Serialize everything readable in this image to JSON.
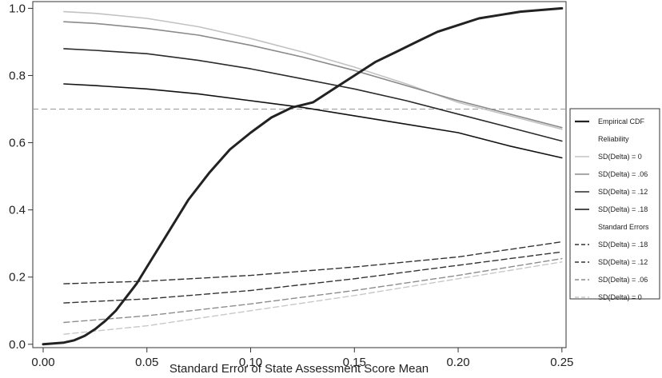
{
  "chart_data": {
    "type": "line",
    "title": "",
    "xlabel": "Standard Error of State Assessment Score Mean",
    "ylabel": "",
    "xlim": [
      -0.005,
      0.252
    ],
    "ylim": [
      -0.01,
      1.02
    ],
    "xticks": [
      0.0,
      0.05,
      0.1,
      0.15,
      0.2,
      0.25
    ],
    "xtick_labels": [
      "0.00",
      "0.05",
      "0.10",
      "0.15",
      "0.20",
      "0.25"
    ],
    "yticks": [
      0.0,
      0.2,
      0.4,
      0.6,
      0.8,
      1.0
    ],
    "ytick_labels": [
      "0.0",
      "0.2",
      "0.4",
      "0.6",
      "0.8",
      "1.0"
    ],
    "grid": false,
    "legend_position": "right",
    "reference_line": {
      "y": 0.7,
      "style": "dashed",
      "color": "#999999"
    },
    "legend": [
      {
        "kind": "series",
        "series_index": 0,
        "label": "Empirical CDF"
      },
      {
        "kind": "header",
        "label": "Reliability"
      },
      {
        "kind": "series",
        "series_index": 1,
        "label": "SD(Delta) = 0"
      },
      {
        "kind": "series",
        "series_index": 2,
        "label": "SD(Delta) = .06"
      },
      {
        "kind": "series",
        "series_index": 3,
        "label": "SD(Delta) = .12"
      },
      {
        "kind": "series",
        "series_index": 4,
        "label": "SD(Delta) = .18"
      },
      {
        "kind": "header",
        "label": "Standard Errors"
      },
      {
        "kind": "series",
        "series_index": 5,
        "label": "SD(Delta) = .18"
      },
      {
        "kind": "series",
        "series_index": 6,
        "label": "SD(Delta) = .12"
      },
      {
        "kind": "series",
        "series_index": 7,
        "label": "SD(Delta) = .06"
      },
      {
        "kind": "series",
        "series_index": 8,
        "label": "SD(Delta) = 0"
      }
    ],
    "series": [
      {
        "name": "Empirical CDF",
        "color": "#222222",
        "dash": "solid",
        "width": 3,
        "x": [
          0.0,
          0.01,
          0.015,
          0.02,
          0.025,
          0.03,
          0.035,
          0.04,
          0.045,
          0.05,
          0.06,
          0.07,
          0.08,
          0.09,
          0.1,
          0.11,
          0.12,
          0.13,
          0.14,
          0.15,
          0.16,
          0.17,
          0.18,
          0.19,
          0.2,
          0.21,
          0.22,
          0.23,
          0.24,
          0.25
        ],
        "y": [
          0.0,
          0.005,
          0.012,
          0.025,
          0.045,
          0.07,
          0.1,
          0.14,
          0.18,
          0.23,
          0.33,
          0.43,
          0.51,
          0.58,
          0.63,
          0.675,
          0.705,
          0.72,
          0.76,
          0.8,
          0.84,
          0.87,
          0.9,
          0.93,
          0.95,
          0.97,
          0.98,
          0.99,
          0.995,
          1.0
        ]
      },
      {
        "name": "SD(Delta) = 0",
        "color": "#c2c2c2",
        "dash": "solid",
        "width": 1.6,
        "x": [
          0.01,
          0.025,
          0.05,
          0.075,
          0.1,
          0.125,
          0.15,
          0.175,
          0.2,
          0.225,
          0.25
        ],
        "y": [
          0.99,
          0.985,
          0.97,
          0.945,
          0.91,
          0.87,
          0.825,
          0.775,
          0.72,
          0.68,
          0.64
        ]
      },
      {
        "name": "SD(Delta) = .06",
        "color": "#8a8a8a",
        "dash": "solid",
        "width": 1.6,
        "x": [
          0.01,
          0.025,
          0.05,
          0.075,
          0.1,
          0.125,
          0.15,
          0.175,
          0.2,
          0.225,
          0.25
        ],
        "y": [
          0.96,
          0.955,
          0.94,
          0.92,
          0.89,
          0.855,
          0.815,
          0.77,
          0.725,
          0.685,
          0.645
        ]
      },
      {
        "name": "SD(Delta) = .12",
        "color": "#2a2a2a",
        "dash": "solid",
        "width": 1.6,
        "x": [
          0.01,
          0.025,
          0.05,
          0.075,
          0.1,
          0.125,
          0.15,
          0.175,
          0.2,
          0.225,
          0.25
        ],
        "y": [
          0.88,
          0.875,
          0.865,
          0.845,
          0.82,
          0.79,
          0.76,
          0.725,
          0.685,
          0.645,
          0.605
        ]
      },
      {
        "name": "SD(Delta) = .18",
        "color": "#111111",
        "dash": "solid",
        "width": 1.6,
        "x": [
          0.01,
          0.025,
          0.05,
          0.075,
          0.1,
          0.125,
          0.15,
          0.175,
          0.2,
          0.225,
          0.25
        ],
        "y": [
          0.775,
          0.77,
          0.76,
          0.745,
          0.725,
          0.705,
          0.68,
          0.655,
          0.63,
          0.59,
          0.555
        ]
      },
      {
        "name": "SD(Delta) = .18",
        "color": "#333333",
        "dash": "dashed",
        "width": 1.4,
        "x": [
          0.01,
          0.05,
          0.1,
          0.15,
          0.2,
          0.25
        ],
        "y": [
          0.18,
          0.188,
          0.205,
          0.23,
          0.26,
          0.305
        ]
      },
      {
        "name": "SD(Delta) = .12",
        "color": "#333333",
        "dash": "dashed",
        "width": 1.4,
        "x": [
          0.01,
          0.05,
          0.1,
          0.15,
          0.2,
          0.25
        ],
        "y": [
          0.123,
          0.135,
          0.16,
          0.195,
          0.235,
          0.275
        ]
      },
      {
        "name": "SD(Delta) = .06",
        "color": "#8c8c8c",
        "dash": "dashed",
        "width": 1.4,
        "x": [
          0.01,
          0.05,
          0.1,
          0.15,
          0.2,
          0.25
        ],
        "y": [
          0.065,
          0.085,
          0.12,
          0.16,
          0.205,
          0.255
        ]
      },
      {
        "name": "SD(Delta) = 0",
        "color": "#c8c8c8",
        "dash": "dashed",
        "width": 1.4,
        "x": [
          0.01,
          0.05,
          0.1,
          0.15,
          0.2,
          0.25
        ],
        "y": [
          0.03,
          0.055,
          0.1,
          0.145,
          0.195,
          0.245
        ]
      }
    ]
  }
}
